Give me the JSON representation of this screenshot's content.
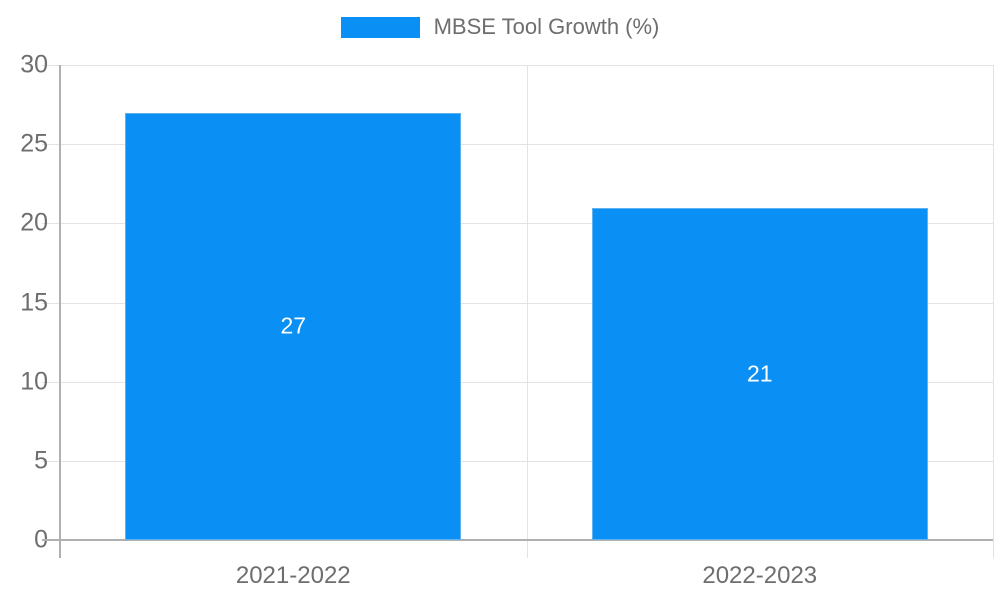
{
  "colors": {
    "background": "#ffffff",
    "bar": "#0A90F5",
    "bar_edge": "#5fb2f0",
    "grid": "#e3e3e3",
    "axis": "#b0b0b0",
    "tick_label": "#6e6e6e",
    "data_label": "#ffffff",
    "legend_text": "#6e6e6e"
  },
  "legend": {
    "label": "MBSE Tool Growth (%)"
  },
  "chart_data": {
    "type": "bar",
    "title": "MBSE Tool Growth (%)",
    "categories": [
      "2021-2022",
      "2022-2023"
    ],
    "values": [
      27,
      21
    ],
    "series": [
      {
        "name": "MBSE Tool Growth (%)",
        "values": [
          27,
          21
        ]
      }
    ],
    "xlabel": "",
    "ylabel": "",
    "ylim": [
      0,
      30
    ],
    "yticks": [
      0,
      5,
      10,
      15,
      20,
      25,
      30
    ],
    "grid": true,
    "legend_position": "top-center",
    "data_labels": "inside-center",
    "data_label_values": [
      "27",
      "21"
    ]
  }
}
